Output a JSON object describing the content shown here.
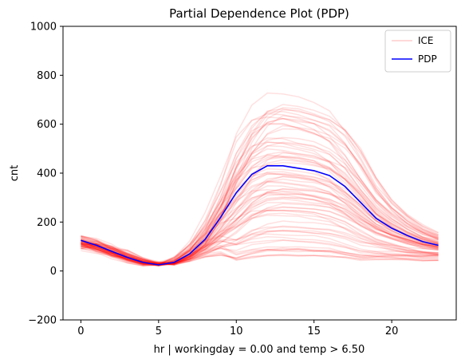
{
  "chart_data": {
    "type": "line",
    "title": "Partial Dependence Plot (PDP)",
    "xlabel": "hr | workingday = 0.00 and temp > 6.50",
    "ylabel": "cnt",
    "xlim": [
      -1.15,
      24.15
    ],
    "ylim": [
      -200,
      1000
    ],
    "xticks": [
      0,
      5,
      10,
      15,
      20
    ],
    "yticks": [
      -200,
      0,
      200,
      400,
      600,
      800,
      1000
    ],
    "grid": false,
    "legend": {
      "placement": "top-right",
      "entries": [
        "ICE",
        "PDP"
      ]
    },
    "x": [
      0,
      1,
      2,
      3,
      4,
      5,
      6,
      7,
      8,
      9,
      10,
      11,
      12,
      13,
      14,
      15,
      16,
      17,
      18,
      19,
      20,
      21,
      22,
      23
    ],
    "pdp": {
      "name": "PDP",
      "color": "#0000ff",
      "values": [
        125,
        105,
        80,
        55,
        35,
        25,
        35,
        70,
        130,
        220,
        320,
        395,
        430,
        430,
        420,
        410,
        390,
        345,
        280,
        215,
        175,
        145,
        120,
        105
      ]
    },
    "ice": {
      "name": "ICE",
      "color": "#ff0000",
      "opacity": 0.12,
      "count": 80
    }
  }
}
